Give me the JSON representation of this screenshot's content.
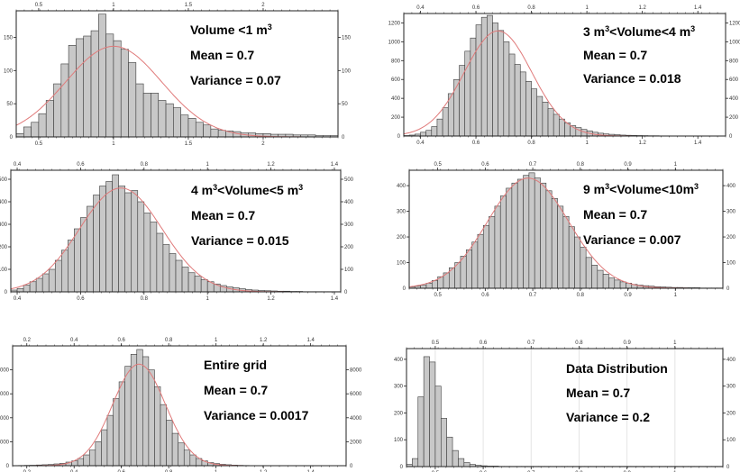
{
  "colors": {
    "bar_fill": "#c8c8c8",
    "bar_stroke": "#3a3a3a",
    "fit_curve": "#e07a7a",
    "frame": "#222222",
    "grid": "#e4e4e4"
  },
  "chart_data": [
    {
      "type": "bar",
      "panel": "top-left",
      "annotation": [
        "Volume   <1 m³",
        "Mean       =  0.7",
        "Variance  =  0.07"
      ],
      "x_ticks_top": [
        "0.5",
        "1",
        "1.5",
        "2"
      ],
      "x_ticks_bottom": [
        "0.5",
        "1",
        "1.5",
        "2"
      ],
      "y_ticks_left": [
        "50",
        "100",
        "150"
      ],
      "y_ticks_right": [
        "50",
        "100",
        "150"
      ],
      "xlim": [
        0.35,
        2.5
      ],
      "ylim": [
        0,
        190
      ],
      "bin_start": 0.35,
      "bin_width": 0.05,
      "values": [
        5,
        15,
        22,
        35,
        55,
        80,
        110,
        138,
        148,
        152,
        160,
        185,
        155,
        145,
        132,
        112,
        80,
        66,
        66,
        55,
        50,
        44,
        33,
        28,
        22,
        18,
        12,
        10,
        9,
        8,
        6,
        6,
        5,
        5,
        4,
        4,
        4,
        3,
        3,
        3,
        2,
        2,
        2
      ]
    },
    {
      "type": "bar",
      "panel": "top-right",
      "annotation": [
        "3 m³<Volume<4 m³",
        "Mean        =  0.7",
        "Variance  =  0.018"
      ],
      "x_ticks_top": [
        "0.4",
        "0.6",
        "0.8",
        "1",
        "1.2",
        "1.4"
      ],
      "x_ticks_bottom": [
        "0.4",
        "0.6",
        "0.8",
        "1",
        "1.2",
        "1.4"
      ],
      "y_ticks_left": [
        "200",
        "400",
        "600",
        "800",
        "1000",
        "1200"
      ],
      "y_ticks_right": [
        "200",
        "400",
        "600",
        "800",
        "1000",
        "1200"
      ],
      "xlim": [
        0.34,
        1.5
      ],
      "ylim": [
        0,
        1300
      ],
      "bin_start": 0.34,
      "bin_width": 0.02,
      "values": [
        5,
        10,
        20,
        40,
        60,
        100,
        180,
        300,
        450,
        600,
        750,
        900,
        1040,
        1180,
        1260,
        1280,
        1200,
        1120,
        1000,
        870,
        760,
        680,
        580,
        500,
        420,
        360,
        290,
        230,
        180,
        140,
        110,
        90,
        70,
        55,
        40,
        30,
        22,
        18,
        14,
        10,
        8,
        6,
        5,
        4,
        3,
        3,
        2,
        2,
        1,
        1,
        1,
        1,
        1,
        1,
        1,
        1,
        1,
        1
      ]
    },
    {
      "type": "bar",
      "panel": "middle-left",
      "annotation": [
        "4 m³<Volume<5 m³",
        "Mean       =  0.7",
        "Variance  =  0.015"
      ],
      "x_ticks_top": [
        "0.4",
        "0.6",
        "0.8",
        "1",
        "1.2",
        "1.4"
      ],
      "x_ticks_bottom": [
        "0.4",
        "0.6",
        "0.8",
        "1",
        "1.2",
        "1.4"
      ],
      "y_ticks_left": [
        "100",
        "200",
        "300",
        "400",
        "500"
      ],
      "y_ticks_right": [
        "100",
        "200",
        "300",
        "400",
        "500"
      ],
      "xlim": [
        0.38,
        1.42
      ],
      "ylim": [
        0,
        540
      ],
      "bin_start": 0.38,
      "bin_width": 0.02,
      "values": [
        8,
        15,
        30,
        45,
        60,
        80,
        100,
        140,
        185,
        230,
        280,
        330,
        380,
        430,
        470,
        490,
        520,
        470,
        440,
        450,
        400,
        350,
        310,
        260,
        210,
        170,
        140,
        110,
        85,
        70,
        55,
        45,
        35,
        28,
        22,
        18,
        14,
        10,
        8,
        6,
        5,
        4,
        3,
        3,
        2,
        2,
        1,
        1,
        1,
        1,
        1,
        1
      ]
    },
    {
      "type": "bar",
      "panel": "middle-right",
      "annotation": [
        "9 m³<Volume<10m³",
        "Mean        =  0.7",
        "Variance  =  0.007"
      ],
      "x_ticks_top": [
        "0.5",
        "0.6",
        "0.7",
        "0.8",
        "0.9",
        "1"
      ],
      "x_ticks_bottom": [
        "0.5",
        "0.6",
        "0.7",
        "0.8",
        "0.9",
        "1"
      ],
      "y_ticks_left": [
        "100",
        "200",
        "300",
        "400"
      ],
      "y_ticks_right": [
        "100",
        "200",
        "300",
        "400"
      ],
      "xlim": [
        0.44,
        1.1
      ],
      "ylim": [
        0,
        460
      ],
      "bin_start": 0.44,
      "bin_width": 0.012,
      "values": [
        5,
        8,
        12,
        20,
        30,
        45,
        60,
        80,
        100,
        125,
        150,
        180,
        210,
        245,
        280,
        320,
        360,
        390,
        410,
        425,
        440,
        450,
        430,
        410,
        380,
        350,
        320,
        280,
        240,
        200,
        160,
        120,
        90,
        70,
        55,
        40,
        32,
        25,
        20,
        15,
        12,
        10,
        8,
        6,
        5,
        4,
        3,
        3,
        2,
        2,
        2,
        1,
        1,
        1,
        1
      ]
    },
    {
      "type": "bar",
      "panel": "bottom-left",
      "annotation": [
        "Entire grid",
        "Mean        =  0.7",
        "Variance  =  0.0017"
      ],
      "x_ticks_top": [
        "0.2",
        "0.4",
        "0.6",
        "0.8",
        "1",
        "1.2",
        "1.4"
      ],
      "x_ticks_bottom": [
        "0.2",
        "0.4",
        "0.6",
        "0.8",
        "1",
        "1.2",
        "1.4"
      ],
      "y_ticks_left": [
        "2000",
        "4000",
        "6000",
        "8000"
      ],
      "y_ticks_right": [
        "2000",
        "4000",
        "6000",
        "8000"
      ],
      "xlim": [
        0.14,
        1.55
      ],
      "ylim": [
        0,
        10000
      ],
      "bin_start": 0.14,
      "bin_width": 0.025,
      "values": [
        10,
        20,
        30,
        40,
        60,
        80,
        100,
        150,
        200,
        300,
        400,
        600,
        900,
        1300,
        2000,
        3000,
        4200,
        5600,
        7000,
        8300,
        9300,
        9700,
        9100,
        8000,
        6600,
        5100,
        3800,
        2700,
        1900,
        1300,
        900,
        600,
        400,
        260,
        180,
        120,
        80,
        50,
        30,
        20,
        15,
        10,
        8,
        5,
        3,
        2,
        2,
        1,
        1,
        1,
        1,
        1,
        1,
        1,
        1,
        1
      ]
    },
    {
      "type": "bar",
      "panel": "bottom-right",
      "annotation": [
        "Data Distribution",
        "Mean       =  0.7",
        "Variance  =  0.2"
      ],
      "x_ticks_top": [
        "0.5",
        "0.6",
        "0.7",
        "0.8",
        "0.9",
        "1"
      ],
      "x_ticks_bottom": [
        "0.5",
        "0.6",
        "0.7",
        "0.8",
        "0.9",
        "1"
      ],
      "y_ticks_left": [
        "100",
        "200",
        "300",
        "400"
      ],
      "y_ticks_right": [
        "100",
        "200",
        "300",
        "400"
      ],
      "xlim": [
        0.44,
        1.1
      ],
      "ylim": [
        0,
        440
      ],
      "bin_start": 0.44,
      "bin_width": 0.012,
      "values": [
        8,
        30,
        260,
        410,
        390,
        300,
        180,
        110,
        60,
        30,
        15,
        8,
        5,
        3,
        2,
        2,
        1,
        1,
        1,
        1,
        1,
        1,
        1,
        1,
        1,
        1,
        1,
        1,
        1,
        1,
        1,
        1,
        1,
        1,
        1,
        1,
        1,
        1,
        1,
        1,
        1,
        1,
        1,
        1,
        1,
        1,
        1,
        1,
        1,
        1,
        1,
        1,
        1,
        1,
        1
      ]
    }
  ]
}
